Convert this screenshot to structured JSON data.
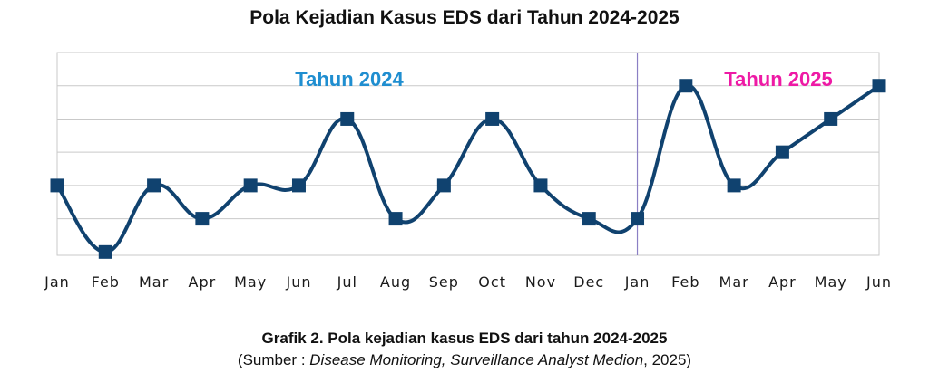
{
  "chart_data": {
    "type": "line",
    "title": "Pola Kejadian Kasus EDS dari Tahun 2024-2025",
    "categories": [
      "Jan",
      "Feb",
      "Mar",
      "Apr",
      "May",
      "Jun",
      "Jul",
      "Aug",
      "Sep",
      "Oct",
      "Nov",
      "Dec",
      "Jan",
      "Feb",
      "Mar",
      "Apr",
      "May",
      "Jun"
    ],
    "values": [
      3,
      1,
      3,
      2,
      3,
      3,
      5,
      2,
      3,
      5,
      3,
      2,
      2,
      6,
      3,
      4,
      5,
      6
    ],
    "ylim": [
      0.9,
      7
    ],
    "grid": true,
    "y_tick_labels_shown": false,
    "year_divider_after_index": 11,
    "annotations": [
      {
        "text": "Tahun 2024",
        "color": "#1f8ed0"
      },
      {
        "text": "Tahun 2025",
        "color": "#ee1aa5"
      }
    ],
    "line_color": "#10426f",
    "marker": "square"
  },
  "caption": "Grafik 2. Pola kejadian kasus EDS dari tahun 2024-2025",
  "source": {
    "prefix": "(Sumber : ",
    "italic": "Disease Monitoring, Surveillance Analyst Medion",
    "suffix": ", 2025)"
  }
}
